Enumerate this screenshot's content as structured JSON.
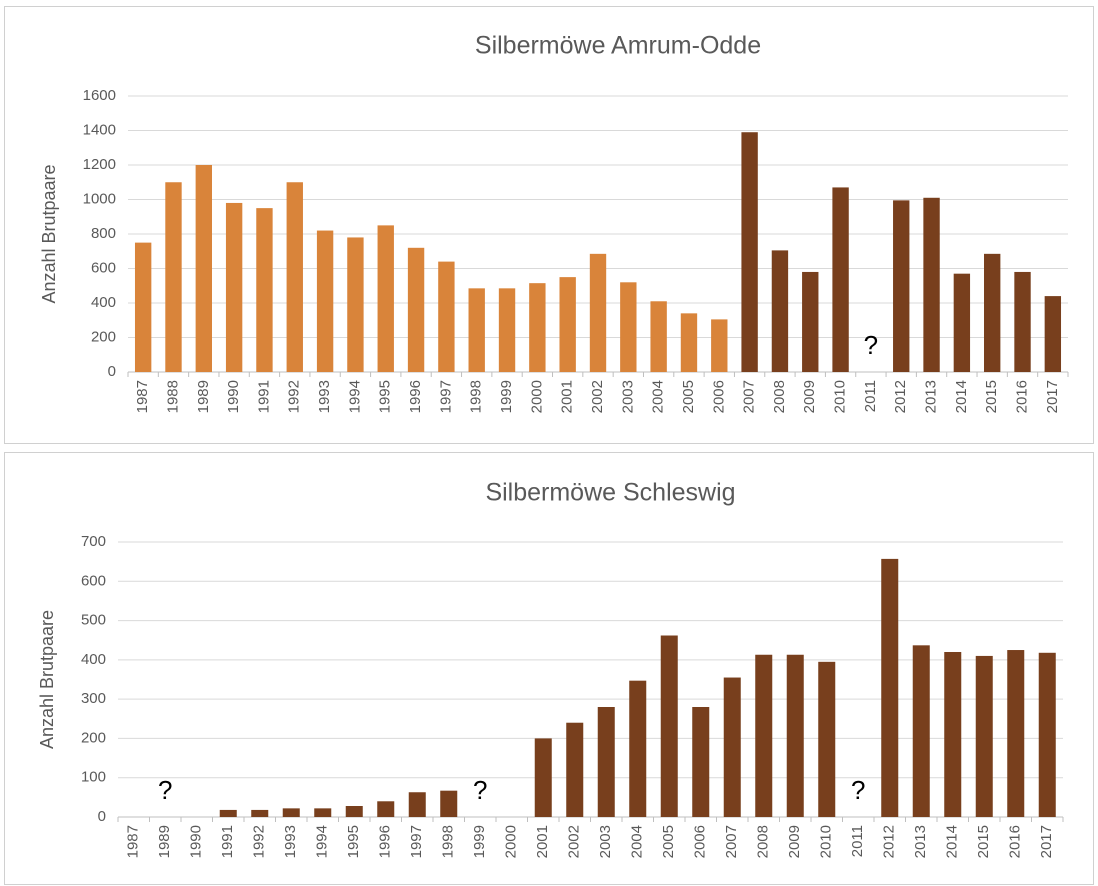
{
  "chart_data": [
    {
      "type": "bar",
      "title": "Silbermöwe Amrum-Odde",
      "y_label": "Anzahl Brutpaare",
      "categories": [
        "1987",
        "1988",
        "1989",
        "1990",
        "1991",
        "1992",
        "1993",
        "1994",
        "1995",
        "1996",
        "1997",
        "1998",
        "1999",
        "2000",
        "2001",
        "2002",
        "2003",
        "2004",
        "2005",
        "2006",
        "2007",
        "2008",
        "2009",
        "2010",
        "2011",
        "2012",
        "2013",
        "2014",
        "2015",
        "2016",
        "2017"
      ],
      "values": [
        750,
        1100,
        1200,
        980,
        950,
        1100,
        820,
        780,
        850,
        720,
        640,
        485,
        485,
        515,
        550,
        685,
        520,
        410,
        340,
        305,
        1390,
        705,
        580,
        1070,
        null,
        995,
        1010,
        570,
        685,
        580,
        440
      ],
      "colors": [
        "#d9843a",
        "#d9843a",
        "#d9843a",
        "#d9843a",
        "#d9843a",
        "#d9843a",
        "#d9843a",
        "#d9843a",
        "#d9843a",
        "#d9843a",
        "#d9843a",
        "#d9843a",
        "#d9843a",
        "#d9843a",
        "#d9843a",
        "#d9843a",
        "#d9843a",
        "#d9843a",
        "#d9843a",
        "#d9843a",
        "#783f1d",
        "#783f1d",
        "#783f1d",
        "#783f1d",
        "#783f1d",
        "#783f1d",
        "#783f1d",
        "#783f1d",
        "#783f1d",
        "#783f1d",
        "#783f1d"
      ],
      "annotations": [
        {
          "text": "?",
          "x": "2011"
        }
      ],
      "ylim": [
        0,
        1600
      ],
      "yticks": [
        0,
        200,
        400,
        600,
        800,
        1000,
        1200,
        1400,
        1600
      ],
      "grid": true
    },
    {
      "type": "bar",
      "title": "Silbermöwe Schleswig",
      "y_label": "Anzahl Brutpaare",
      "categories": [
        "1987",
        "1989",
        "1990",
        "1991",
        "1992",
        "1993",
        "1994",
        "1995",
        "1996",
        "1997",
        "1998",
        "1999",
        "2000",
        "2001",
        "2002",
        "2003",
        "2004",
        "2005",
        "2006",
        "2007",
        "2008",
        "2009",
        "2010",
        "2011",
        "2012",
        "2013",
        "2014",
        "2015",
        "2016",
        "2017"
      ],
      "values": [
        null,
        null,
        0,
        18,
        18,
        22,
        22,
        28,
        40,
        63,
        67,
        null,
        0,
        200,
        240,
        280,
        347,
        462,
        280,
        355,
        413,
        413,
        395,
        null,
        657,
        437,
        420,
        410,
        425,
        418
      ],
      "color": "#783f1d",
      "annotations": [
        {
          "text": "?",
          "x": "1989"
        },
        {
          "text": "?",
          "x": "1999"
        },
        {
          "text": "?",
          "x": "2011"
        }
      ],
      "ylim": [
        0,
        700
      ],
      "yticks": [
        0,
        100,
        200,
        300,
        400,
        500,
        600,
        700
      ],
      "grid": true
    }
  ]
}
